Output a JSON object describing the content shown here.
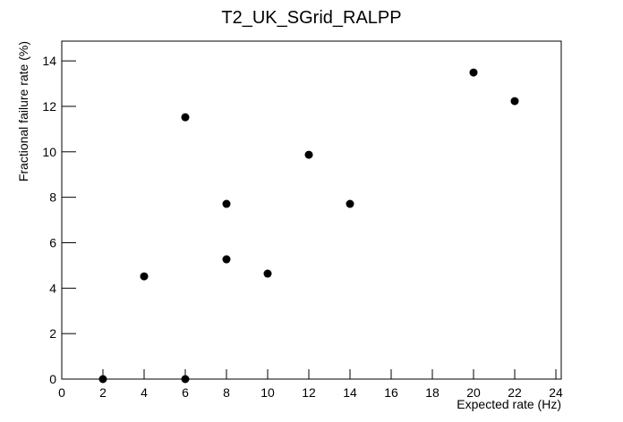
{
  "chart_data": {
    "type": "scatter",
    "title": "T2_UK_SGrid_RALPP",
    "x_label": "Expected rate (Hz)",
    "y_label": "Fractional failure rate (%)",
    "x": [
      2,
      4,
      6,
      6,
      8,
      8,
      10,
      12,
      14,
      20,
      22
    ],
    "values": [
      0,
      4.52,
      11.52,
      0,
      7.71,
      5.27,
      4.64,
      9.87,
      7.71,
      13.49,
      12.23
    ],
    "color": "#000000",
    "xlim": [
      0,
      24.26
    ],
    "xticks": [
      0,
      2,
      4,
      6,
      8,
      10,
      12,
      14,
      16,
      18,
      20,
      22,
      24
    ],
    "ylim": [
      0,
      14.87
    ],
    "yticks": [
      0,
      2,
      4,
      6,
      8,
      10,
      12,
      14
    ]
  }
}
